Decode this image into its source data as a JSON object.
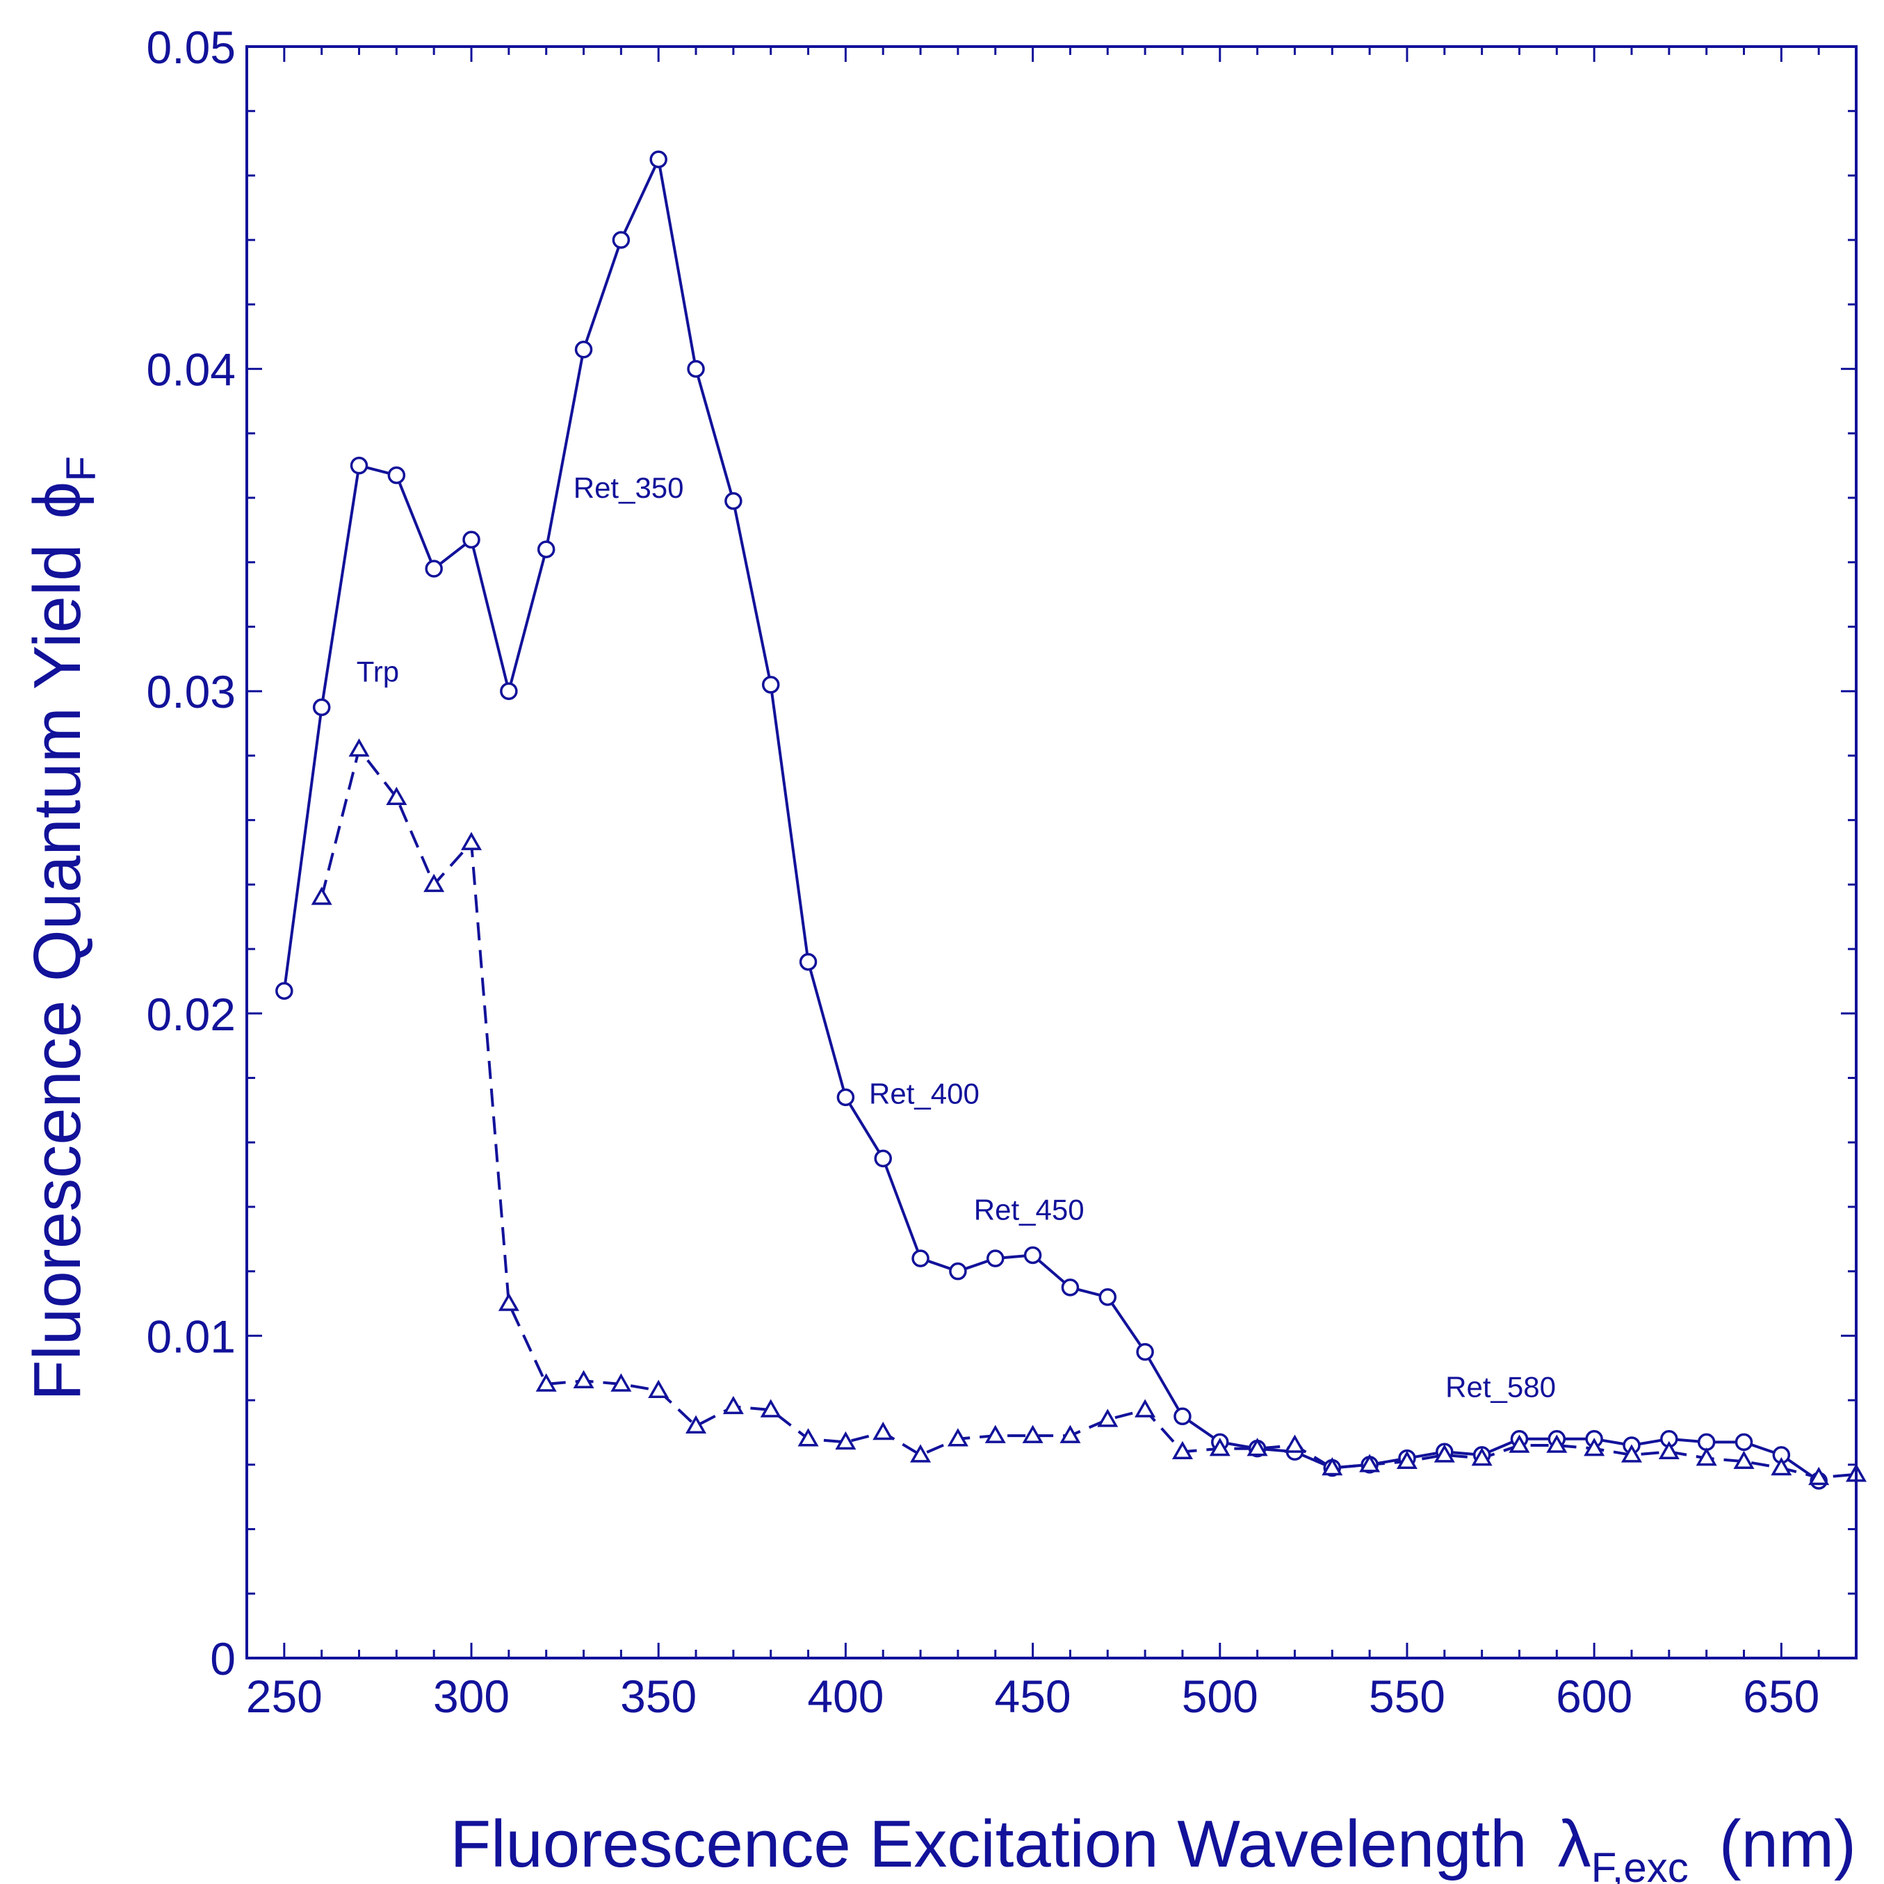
{
  "chart_data": {
    "type": "line",
    "color": "#12129a",
    "xlabel": {
      "main": "Fluorescence Excitation Wavelength",
      "symbol": "λ",
      "subscript": "F,exc",
      "unit": "(nm)"
    },
    "ylabel": {
      "main": "Fluorescence Quantum Yield",
      "symbol": "ϕ",
      "subscript": "F"
    },
    "xlim": [
      240,
      670
    ],
    "ylim": [
      0,
      0.05
    ],
    "x_ticks": [
      250,
      300,
      350,
      400,
      450,
      500,
      550,
      600,
      650
    ],
    "x_tick_labels": [
      "250",
      "300",
      "350",
      "400",
      "450",
      "500",
      "550",
      "600",
      "650"
    ],
    "y_ticks": [
      0,
      0.01,
      0.02,
      0.03,
      0.04,
      0.05
    ],
    "y_tick_labels": [
      "0",
      "0.01",
      "0.02",
      "0.03",
      "0.04",
      "0.05"
    ],
    "x_minor_step": 10,
    "y_minor_step": 0.002,
    "series": [
      {
        "name": "circles-solid",
        "marker": "circle",
        "line": "solid",
        "x": [
          250,
          260,
          270,
          280,
          290,
          300,
          310,
          320,
          330,
          340,
          350,
          360,
          370,
          380,
          390,
          400,
          410,
          420,
          430,
          440,
          450,
          460,
          470,
          480,
          490,
          500,
          510,
          520,
          530,
          540,
          550,
          560,
          570,
          580,
          590,
          600,
          610,
          620,
          630,
          640,
          650,
          660
        ],
        "y": [
          0.0207,
          0.0295,
          0.037,
          0.0367,
          0.0338,
          0.0347,
          0.03,
          0.0344,
          0.0406,
          0.044,
          0.0465,
          0.04,
          0.0359,
          0.0302,
          0.0216,
          0.0174,
          0.0155,
          0.0124,
          0.012,
          0.0124,
          0.0125,
          0.0115,
          0.0112,
          0.0095,
          0.0075,
          0.0067,
          0.0065,
          0.0064,
          0.0059,
          0.006,
          0.0062,
          0.0064,
          0.0063,
          0.0068,
          0.0068,
          0.0068,
          0.0066,
          0.0068,
          0.0067,
          0.0067,
          0.0063,
          0.0055
        ]
      },
      {
        "name": "triangles-dashed",
        "marker": "triangle",
        "line": "dashed",
        "x": [
          260,
          270,
          280,
          290,
          300,
          310,
          320,
          330,
          340,
          350,
          360,
          370,
          380,
          390,
          400,
          410,
          420,
          430,
          440,
          450,
          460,
          470,
          480,
          490,
          500,
          510,
          520,
          530,
          540,
          550,
          560,
          570,
          580,
          590,
          600,
          610,
          620,
          630,
          640,
          650,
          660,
          670
        ],
        "y": [
          0.0236,
          0.0282,
          0.0267,
          0.024,
          0.0253,
          0.011,
          0.0085,
          0.0086,
          0.0085,
          0.0083,
          0.0072,
          0.0078,
          0.0077,
          0.0068,
          0.0067,
          0.007,
          0.0063,
          0.0068,
          0.0069,
          0.0069,
          0.0069,
          0.0074,
          0.0077,
          0.0064,
          0.0065,
          0.0065,
          0.0066,
          0.0059,
          0.006,
          0.0061,
          0.0063,
          0.0062,
          0.0066,
          0.0066,
          0.0065,
          0.0063,
          0.0064,
          0.0062,
          0.0061,
          0.0059,
          0.0056,
          0.0057
        ]
      }
    ],
    "annotations": [
      {
        "text": "Trp",
        "x": 275,
        "y": 0.0303
      },
      {
        "text": "Ret_350",
        "x": 342,
        "y": 0.036
      },
      {
        "text": "Ret_400",
        "x": 421,
        "y": 0.0172
      },
      {
        "text": "Ret_450",
        "x": 449,
        "y": 0.0136
      },
      {
        "text": "Ret_580",
        "x": 575,
        "y": 0.0081
      }
    ]
  }
}
